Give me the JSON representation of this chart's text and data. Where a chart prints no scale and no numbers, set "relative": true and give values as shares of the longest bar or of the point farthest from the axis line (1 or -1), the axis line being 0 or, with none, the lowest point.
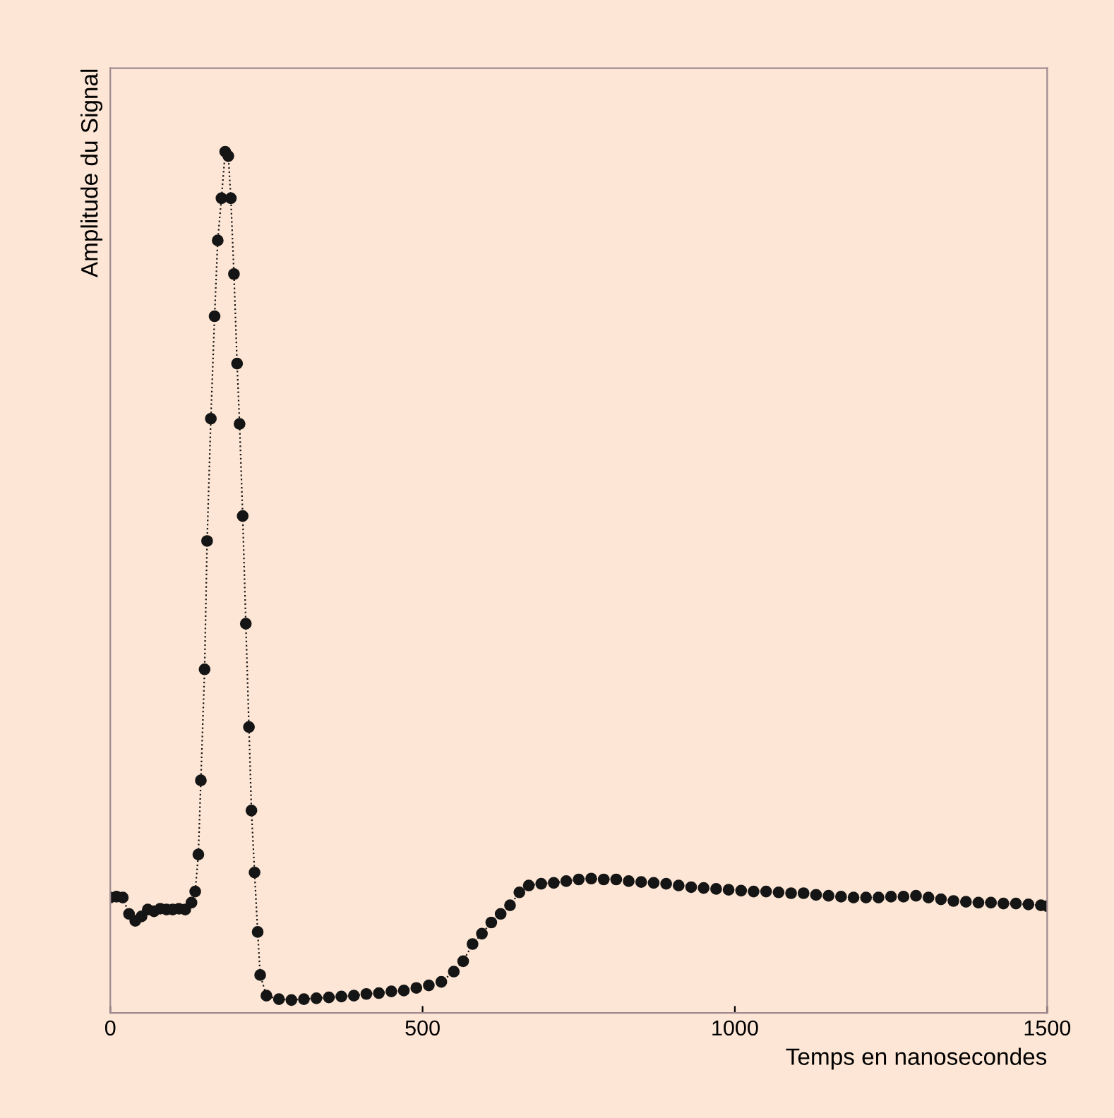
{
  "chart_data": {
    "type": "line",
    "xlabel": "Temps en nanosecondes",
    "ylabel": "Amplitude du Signal",
    "relative": true,
    "xlim": [
      0,
      1500
    ],
    "xticks": [
      0,
      500,
      1000,
      1500
    ],
    "marker": "circle",
    "line_style": "dotted",
    "grid": false,
    "series": [
      {
        "color": "#151515",
        "x": [
          0,
          10,
          20,
          30,
          40,
          50,
          60,
          70,
          80,
          90,
          100,
          110,
          120,
          130,
          136,
          141,
          145,
          151,
          155,
          161,
          167,
          172,
          178,
          184,
          189,
          193,
          198,
          203,
          207,
          212,
          217,
          222,
          226,
          231,
          236,
          240,
          250,
          270,
          290,
          310,
          330,
          350,
          370,
          390,
          410,
          430,
          450,
          470,
          490,
          510,
          530,
          550,
          565,
          580,
          595,
          610,
          625,
          640,
          655,
          670,
          690,
          710,
          730,
          750,
          770,
          790,
          810,
          830,
          850,
          870,
          890,
          910,
          930,
          950,
          970,
          990,
          1010,
          1030,
          1050,
          1070,
          1090,
          1110,
          1130,
          1150,
          1170,
          1190,
          1210,
          1230,
          1250,
          1270,
          1290,
          1310,
          1330,
          1350,
          1370,
          1390,
          1410,
          1430,
          1450,
          1470,
          1490,
          1500
        ],
        "values": [
          0.134,
          0.135,
          0.134,
          0.115,
          0.107,
          0.112,
          0.12,
          0.118,
          0.121,
          0.12,
          0.12,
          0.121,
          0.12,
          0.128,
          0.141,
          0.184,
          0.27,
          0.399,
          0.548,
          0.69,
          0.809,
          0.897,
          0.946,
          1,
          0.995,
          0.946,
          0.858,
          0.754,
          0.684,
          0.577,
          0.452,
          0.332,
          0.235,
          0.163,
          0.094,
          0.044,
          0.02,
          0.016,
          0.015,
          0.016,
          0.017,
          0.018,
          0.019,
          0.02,
          0.022,
          0.023,
          0.025,
          0.026,
          0.029,
          0.032,
          0.036,
          0.048,
          0.06,
          0.08,
          0.092,
          0.105,
          0.115,
          0.125,
          0.14,
          0.148,
          0.15,
          0.151,
          0.153,
          0.155,
          0.156,
          0.155,
          0.155,
          0.153,
          0.152,
          0.151,
          0.15,
          0.148,
          0.146,
          0.145,
          0.144,
          0.143,
          0.142,
          0.141,
          0.141,
          0.14,
          0.139,
          0.139,
          0.137,
          0.136,
          0.135,
          0.134,
          0.134,
          0.134,
          0.135,
          0.135,
          0.136,
          0.134,
          0.132,
          0.13,
          0.129,
          0.128,
          0.128,
          0.127,
          0.127,
          0.126,
          0.125,
          0.124
        ]
      }
    ]
  }
}
